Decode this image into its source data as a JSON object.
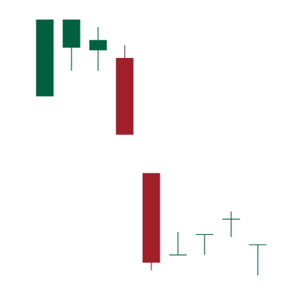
{
  "chart_data": {
    "type": "candlestick",
    "title": "",
    "xlabel": "",
    "ylabel": "",
    "ylim": [
      0,
      100
    ],
    "grid": false,
    "legend": "none",
    "colors": {
      "up": "#006040",
      "down": "#a11f29",
      "background": "#ffffff"
    },
    "candles": [
      {
        "index": 1,
        "open": 70,
        "high": 100,
        "low": 70,
        "close": 100
      },
      {
        "index": 2,
        "open": 89,
        "high": 100,
        "low": 80,
        "close": 100
      },
      {
        "index": 3,
        "open": 88,
        "high": 97,
        "low": 80,
        "close": 92
      },
      {
        "index": 4,
        "open": 85,
        "high": 90,
        "low": 55,
        "close": 55
      },
      {
        "index": 5,
        "open": 40,
        "high": 40,
        "low": 2,
        "close": 5
      },
      {
        "index": 6,
        "open": 8,
        "high": 17,
        "low": 8,
        "close": 8
      },
      {
        "index": 7,
        "open": 16,
        "high": 16,
        "low": 8,
        "close": 16
      },
      {
        "index": 8,
        "open": 22,
        "high": 25,
        "low": 15,
        "close": 22
      },
      {
        "index": 9,
        "open": 12,
        "high": 12,
        "low": 0,
        "close": 12
      }
    ]
  }
}
